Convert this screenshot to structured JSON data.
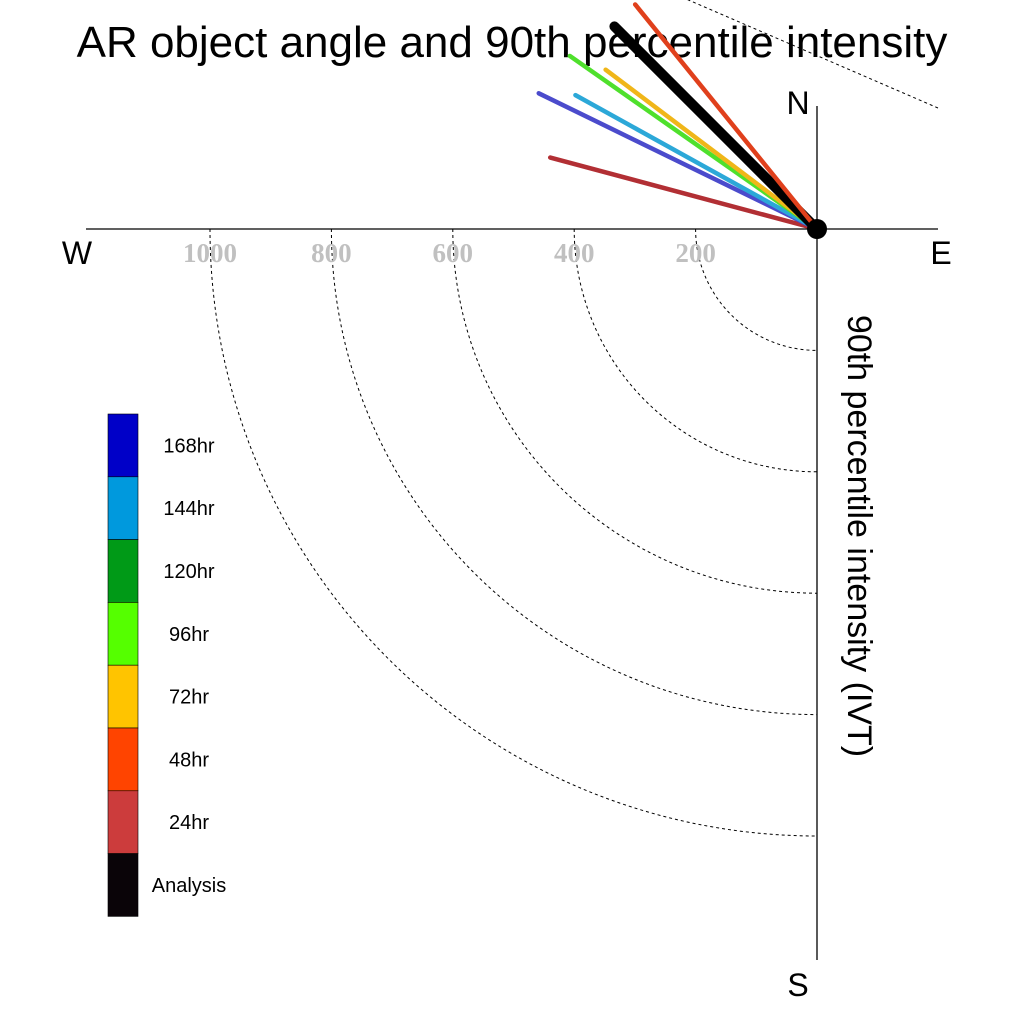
{
  "chart_data": {
    "type": "line",
    "title": "AR object angle and 90th percentile intensity",
    "ylabel": "90th percentile intensity (IVT)",
    "compass": {
      "north": "N",
      "south": "S",
      "east": "E",
      "west": "W"
    },
    "radial_ticks": [
      "1000",
      "800",
      "600",
      "400",
      "200"
    ],
    "radial_tick_values": [
      1000,
      800,
      600,
      400,
      200
    ],
    "radial_rings": [
      200,
      400,
      600,
      800,
      1000
    ],
    "radial_range": [
      0,
      1000
    ],
    "grid": true,
    "legend_placement": "left",
    "legend": [
      {
        "name": "168hr",
        "color": "#0000c8"
      },
      {
        "name": "144hr",
        "color": "#0099dd"
      },
      {
        "name": "120hr",
        "color": "#009a17"
      },
      {
        "name": "96hr",
        "color": "#55ff00"
      },
      {
        "name": "72hr",
        "color": "#ffc400"
      },
      {
        "name": "48hr",
        "color": "#ff4400"
      },
      {
        "name": "24hr",
        "color": "#cc3c3c"
      },
      {
        "name": "Analysis",
        "color": "#0a0408"
      }
    ],
    "series": [
      {
        "name": "24hr",
        "angle_deg": 195,
        "intensity": 455,
        "color": "#b22f34"
      },
      {
        "name": "168hr",
        "angle_deg": 206,
        "intensity": 510,
        "color": "#4b4bcc"
      },
      {
        "name": "144hr",
        "angle_deg": 209,
        "intensity": 455,
        "color": "#2ca8d8"
      },
      {
        "name": "96hr",
        "angle_deg": 215,
        "intensity": 497,
        "color": "#4fe02c"
      },
      {
        "name": "72hr",
        "angle_deg": 217,
        "intensity": 436,
        "color": "#f0b619"
      },
      {
        "name": "Analysis",
        "angle_deg": 225,
        "intensity": 472,
        "color": "#000000"
      },
      {
        "name": "48hr",
        "angle_deg": 231,
        "intensity": 476,
        "color": "#e0401c"
      }
    ]
  }
}
